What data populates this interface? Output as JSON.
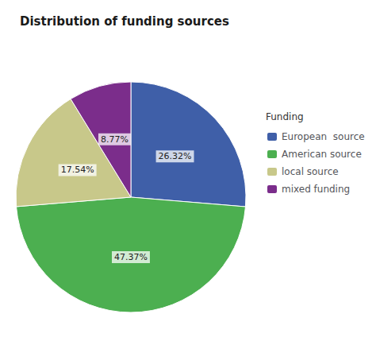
{
  "chart_data": {
    "type": "pie",
    "title": "Distribution of funding sources",
    "legend_title": "Funding",
    "categories": [
      "European  source",
      "American source",
      "local source",
      "mixed funding"
    ],
    "values": [
      26.32,
      47.37,
      17.54,
      8.77
    ],
    "value_labels": [
      "26.32%",
      "47.37%",
      "17.54%",
      "8.77%"
    ],
    "colors": [
      "#3f5fa8",
      "#4caf50",
      "#c8c88a",
      "#7b2d8b"
    ],
    "data_labels": true,
    "legend": "right"
  }
}
